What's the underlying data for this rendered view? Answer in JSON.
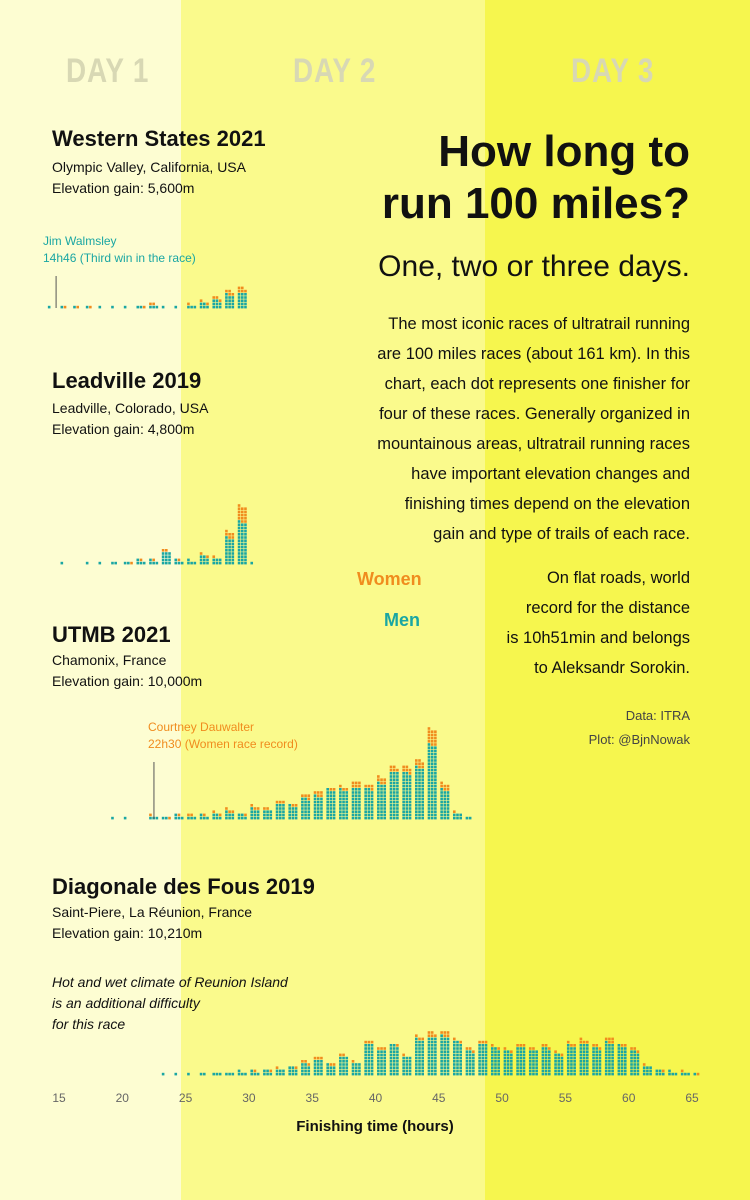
{
  "colors": {
    "day1_bg": "#fdfdd2",
    "day2_bg": "#fafa8c",
    "day3_bg": "#f6f64e",
    "men": "#1aa6a3",
    "women": "#f08c1e",
    "day_label": "#d8d8b4"
  },
  "day_labels": [
    "DAY 1",
    "DAY 2",
    "DAY 3"
  ],
  "headline": {
    "lines": [
      "How long to",
      "run 100 miles?"
    ],
    "subtitle": "One, two or three days."
  },
  "description_lines": [
    "The most iconic races of ultratrail running",
    "are 100 miles races (about 161 km). In this",
    "chart, each dot represents one finisher for",
    "four of these races. Generally organized in",
    "mountainous areas, ultratrail running races",
    "have important elevation changes and",
    "finishing times depend on the elevation",
    "gain and type of trails of each race."
  ],
  "record_lines": [
    "On flat roads, world",
    "record for the distance",
    "is 10h51min and belongs",
    "to Aleksandr Sorokin."
  ],
  "credits": {
    "data": "Data: ITRA",
    "plot": "Plot: @BjnNowak"
  },
  "legend": {
    "women": "Women",
    "men": "Men"
  },
  "annotations": {
    "walmsley": [
      "Jim Walmsley",
      "14h46 (Third win in the race)"
    ],
    "dauwalter": [
      "Courtney Dauwalter",
      "22h30 (Women race record)"
    ]
  },
  "climate_note": [
    "Hot and wet climate of Reunion Island",
    "is an additional difficulty",
    "for this race"
  ],
  "races": [
    {
      "title": "Western States 2021",
      "location": "Olympic Valley, California, USA",
      "elevation": "Elevation gain: 5,600m"
    },
    {
      "title": "Leadville 2019",
      "location": "Leadville, Colorado, USA",
      "elevation": "Elevation gain: 4,800m"
    },
    {
      "title": "UTMB 2021",
      "location": "Chamonix, France",
      "elevation": "Elevation gain: 10,000m"
    },
    {
      "title": "Diagonale des Fous 2019",
      "location": "Saint-Piere, La Réunion, France",
      "elevation": "Elevation gain: 10,210m"
    }
  ],
  "chart_data": {
    "type": "bar",
    "stacked": true,
    "xlabel": "Finishing time (hours)",
    "xlim": [
      15,
      65
    ],
    "xticks": [
      15,
      20,
      25,
      30,
      35,
      40,
      45,
      50,
      55,
      60,
      65
    ],
    "dot_unit": "1 finisher per dot",
    "day_boundaries_hours": [
      24,
      48
    ],
    "series_names": [
      "Men",
      "Women"
    ],
    "races": [
      {
        "name": "Western States 2021",
        "x": [
          14.5,
          15.5,
          16.5,
          17.5,
          18.5,
          19.5,
          20.5,
          21.5,
          22.5,
          23.5,
          24.5,
          25.5,
          26.5,
          27.5,
          28.5,
          29.5
        ],
        "men": [
          1,
          1,
          1,
          1,
          1,
          1,
          1,
          2,
          3,
          1,
          1,
          3,
          5,
          8,
          13,
          15
        ],
        "women": [
          0,
          1,
          1,
          1,
          0,
          0,
          0,
          1,
          2,
          0,
          0,
          1,
          2,
          3,
          4,
          5
        ]
      },
      {
        "name": "Leadville 2019",
        "x": [
          15.5,
          16.5,
          17.5,
          18.5,
          19.5,
          20.5,
          21.5,
          22.5,
          23.5,
          24.5,
          25.5,
          26.5,
          27.5,
          28.5,
          29.5,
          30.5
        ],
        "men": [
          1,
          0,
          1,
          1,
          2,
          2,
          4,
          4,
          12,
          4,
          4,
          8,
          6,
          25,
          40,
          1
        ],
        "women": [
          0,
          0,
          0,
          0,
          0,
          1,
          1,
          1,
          2,
          1,
          0,
          2,
          1,
          6,
          15,
          0
        ]
      },
      {
        "name": "UTMB 2021",
        "x": [
          19.5,
          20.5,
          21.5,
          22.5,
          23.5,
          24.5,
          25.5,
          26.5,
          27.5,
          28.5,
          29.5,
          30.5,
          31.5,
          32.5,
          33.5,
          34.5,
          35.5,
          36.5,
          37.5,
          38.5,
          39.5,
          40.5,
          41.5,
          42.5,
          43.5,
          44.5,
          45.5,
          46.5,
          47.5
        ],
        "men": [
          1,
          1,
          0,
          3,
          2,
          4,
          3,
          4,
          5,
          7,
          5,
          10,
          9,
          15,
          13,
          20,
          22,
          28,
          28,
          30,
          29,
          34,
          45,
          44,
          49,
          70,
          28,
          6,
          2
        ],
        "women": [
          0,
          0,
          0,
          1,
          1,
          1,
          2,
          1,
          2,
          3,
          1,
          3,
          2,
          3,
          2,
          4,
          5,
          2,
          3,
          6,
          4,
          6,
          5,
          6,
          7,
          15,
          6,
          1,
          0
        ]
      },
      {
        "name": "Diagonale des Fous 2019",
        "x": [
          23.5,
          24.5,
          25.5,
          26.5,
          27.5,
          28.5,
          29.5,
          30.5,
          31.5,
          32.5,
          33.5,
          34.5,
          35.5,
          36.5,
          37.5,
          38.5,
          39.5,
          40.5,
          41.5,
          42.5,
          43.5,
          44.5,
          45.5,
          46.5,
          47.5,
          48.5,
          49.5,
          50.5,
          51.5,
          52.5,
          53.5,
          54.5,
          55.5,
          56.5,
          57.5,
          58.5,
          59.5,
          60.5,
          61.5,
          62.5,
          63.5,
          64.5,
          65.5
        ],
        "men": [
          1,
          1,
          1,
          2,
          3,
          3,
          4,
          4,
          5,
          6,
          8,
          11,
          15,
          10,
          18,
          12,
          30,
          24,
          29,
          18,
          34,
          36,
          37,
          32,
          23,
          30,
          26,
          23,
          27,
          24,
          26,
          20,
          28,
          30,
          26,
          31,
          28,
          23,
          9,
          5,
          4,
          3,
          1
        ],
        "women": [
          0,
          0,
          0,
          0,
          0,
          0,
          0,
          1,
          1,
          1,
          1,
          3,
          3,
          2,
          2,
          1,
          3,
          3,
          1,
          1,
          3,
          5,
          5,
          2,
          3,
          3,
          2,
          2,
          3,
          2,
          3,
          2,
          3,
          4,
          3,
          5,
          2,
          3,
          1,
          1,
          0,
          1,
          1
        ]
      }
    ]
  }
}
